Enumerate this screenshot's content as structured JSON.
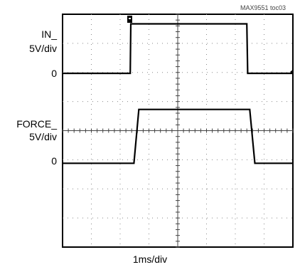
{
  "chart_data": {
    "type": "line",
    "tag": "MAX9551 toc03",
    "time_div": "1ms/div",
    "grid": true,
    "grid_divisions": {
      "x": 8,
      "y": 8
    },
    "series": [
      {
        "label": "IN_",
        "scale": "5V/div",
        "zero_label": "0",
        "points_div": [
          [
            0,
            0
          ],
          [
            2.35,
            0
          ],
          [
            2.37,
            1.7
          ],
          [
            6.4,
            1.7
          ],
          [
            6.43,
            0
          ],
          [
            8,
            0
          ]
        ]
      },
      {
        "label": "FORCE_",
        "scale": "5V/div",
        "zero_label": "0",
        "points_div": [
          [
            0,
            0
          ],
          [
            2.48,
            0
          ],
          [
            2.65,
            1.85
          ],
          [
            6.5,
            1.85
          ],
          [
            6.68,
            0
          ],
          [
            8,
            0
          ]
        ]
      }
    ]
  }
}
